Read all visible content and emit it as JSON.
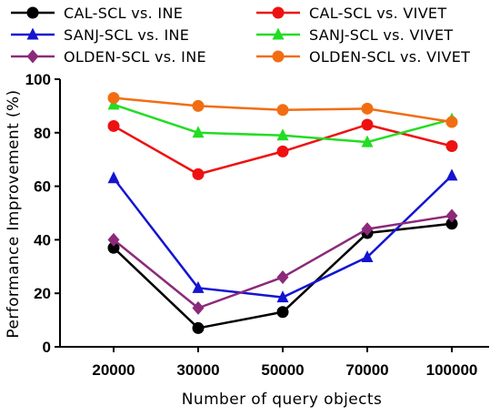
{
  "chart_data": {
    "type": "line",
    "title": "",
    "xlabel": "Number of query objects",
    "ylabel": "Performance Improvement (%)",
    "categories": [
      "20000",
      "30000",
      "50000",
      "70000",
      "100000"
    ],
    "ylim": [
      0,
      100
    ],
    "yticks": [
      "0",
      "20",
      "40",
      "60",
      "80",
      "100"
    ],
    "legend_position": "top",
    "grid": false,
    "series": [
      {
        "name": "CAL-SCL vs. INE",
        "color": "#000000",
        "marker": "circle",
        "values": [
          37,
          7,
          13,
          42.5,
          46
        ]
      },
      {
        "name": "SANJ-SCL vs. INE",
        "color": "#1414d2",
        "marker": "triangle",
        "values": [
          63,
          22,
          18.5,
          33.5,
          64
        ]
      },
      {
        "name": "OLDEN-SCL vs. INE",
        "color": "#8b2a7a",
        "marker": "diamond",
        "values": [
          40,
          14.5,
          26,
          44,
          49
        ]
      },
      {
        "name": "CAL-SCL vs. VIVET",
        "color": "#ee1111",
        "marker": "circle",
        "values": [
          82.5,
          64.5,
          73,
          83,
          75
        ]
      },
      {
        "name": "SANJ-SCL vs. VIVET",
        "color": "#22dd22",
        "marker": "triangle",
        "values": [
          90.5,
          80,
          79,
          76.5,
          85
        ]
      },
      {
        "name": "OLDEN-SCL vs. VIVET",
        "color": "#f26d12",
        "marker": "circle",
        "values": [
          93,
          90,
          88.5,
          89,
          84
        ]
      }
    ]
  }
}
